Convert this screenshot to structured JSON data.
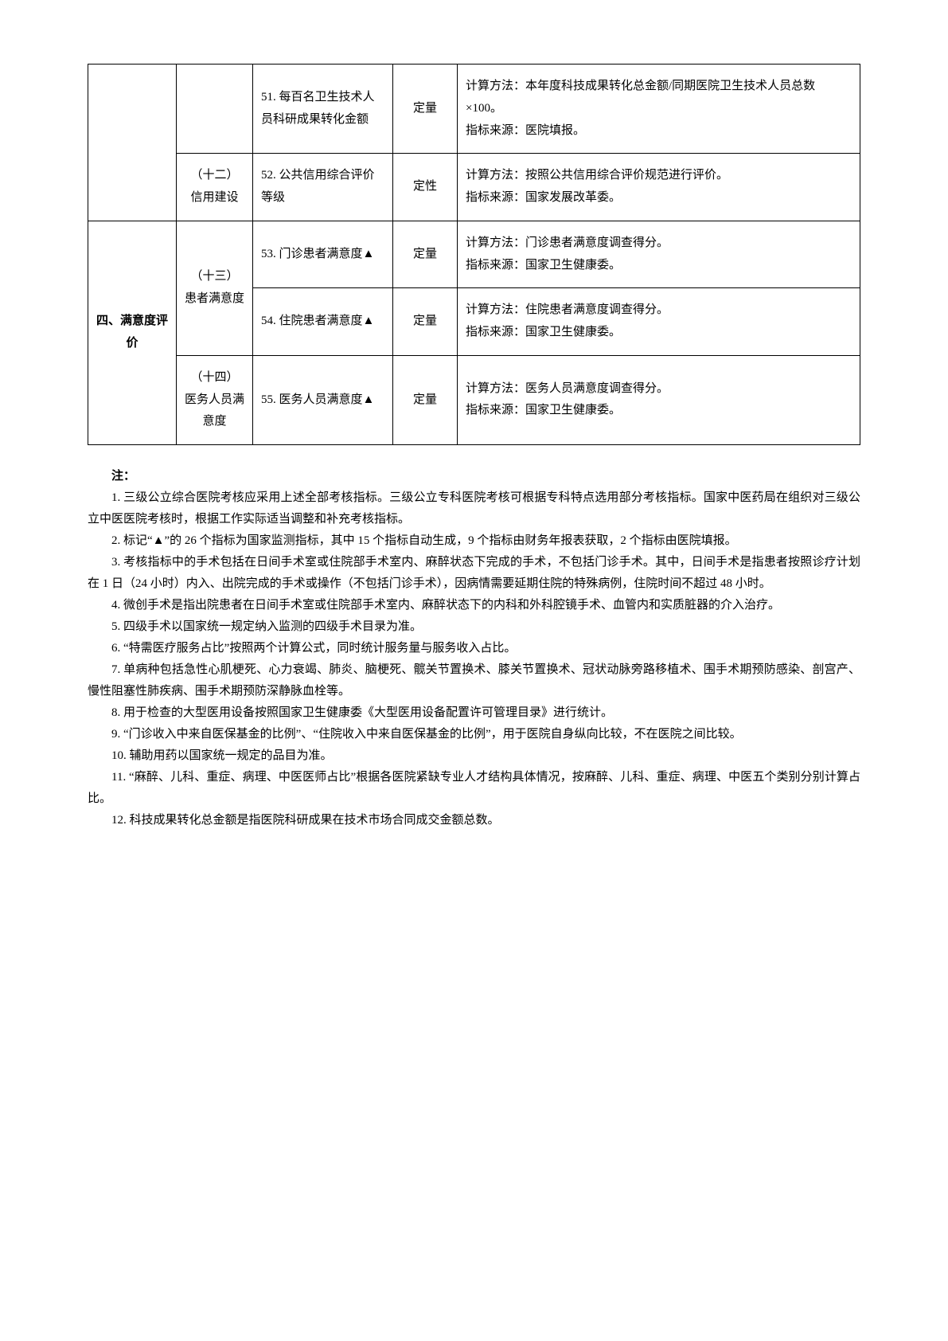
{
  "table": {
    "rows": [
      {
        "c1": "",
        "c2": "",
        "c3": "51. 每百名卫生技术人员科研成果转化金额",
        "c4": "定量",
        "c5": "计算方法：本年度科技成果转化总金额/同期医院卫生技术人员总数×100。\n指标来源：医院填报。"
      },
      {
        "c1": "",
        "c2": "（十二）\n信用建设",
        "c3": "52. 公共信用综合评价等级",
        "c4": "定性",
        "c5": "计算方法：按照公共信用综合评价规范进行评价。\n指标来源：国家发展改革委。"
      },
      {
        "c1": "四、满意度评价",
        "c2": "（十三）\n患者满意度",
        "c3": "53. 门诊患者满意度▲",
        "c4": "定量",
        "c5": "计算方法：门诊患者满意度调查得分。\n指标来源：国家卫生健康委。"
      },
      {
        "c1": "",
        "c2": "",
        "c3": "54. 住院患者满意度▲",
        "c4": "定量",
        "c5": "计算方法：住院患者满意度调查得分。\n指标来源：国家卫生健康委。"
      },
      {
        "c1": "",
        "c2": "（十四）\n医务人员满意度",
        "c3": "55. 医务人员满意度▲",
        "c4": "定量",
        "c5": "计算方法：医务人员满意度调查得分。\n指标来源：国家卫生健康委。"
      }
    ]
  },
  "notes": {
    "title": "注：",
    "items": [
      "1. 三级公立综合医院考核应采用上述全部考核指标。三级公立专科医院考核可根据专科特点选用部分考核指标。国家中医药局在组织对三级公立中医医院考核时，根据工作实际适当调整和补充考核指标。",
      "2. 标记“▲”的 26 个指标为国家监测指标，其中 15 个指标自动生成，9 个指标由财务年报表获取，2 个指标由医院填报。",
      "3. 考核指标中的手术包括在日间手术室或住院部手术室内、麻醉状态下完成的手术，不包括门诊手术。其中，日间手术是指患者按照诊疗计划在 1 日（24 小时）内入、出院完成的手术或操作（不包括门诊手术），因病情需要延期住院的特殊病例，住院时间不超过 48 小时。",
      "4. 微创手术是指出院患者在日间手术室或住院部手术室内、麻醉状态下的内科和外科腔镜手术、血管内和实质脏器的介入治疗。",
      "5. 四级手术以国家统一规定纳入监测的四级手术目录为准。",
      "6. “特需医疗服务占比”按照两个计算公式，同时统计服务量与服务收入占比。",
      "7. 单病种包括急性心肌梗死、心力衰竭、肺炎、脑梗死、髋关节置换术、膝关节置换术、冠状动脉旁路移植术、围手术期预防感染、剖宫产、慢性阻塞性肺疾病、围手术期预防深静脉血栓等。",
      "8. 用于检查的大型医用设备按照国家卫生健康委《大型医用设备配置许可管理目录》进行统计。",
      "9. “门诊收入中来自医保基金的比例”、“住院收入中来自医保基金的比例”，用于医院自身纵向比较，不在医院之间比较。",
      "10. 辅助用药以国家统一规定的品目为准。",
      "11. “麻醉、儿科、重症、病理、中医医师占比”根据各医院紧缺专业人才结构具体情况，按麻醉、儿科、重症、病理、中医五个类别分别计算占比。",
      "12. 科技成果转化总金额是指医院科研成果在技术市场合同成交金额总数。"
    ]
  }
}
